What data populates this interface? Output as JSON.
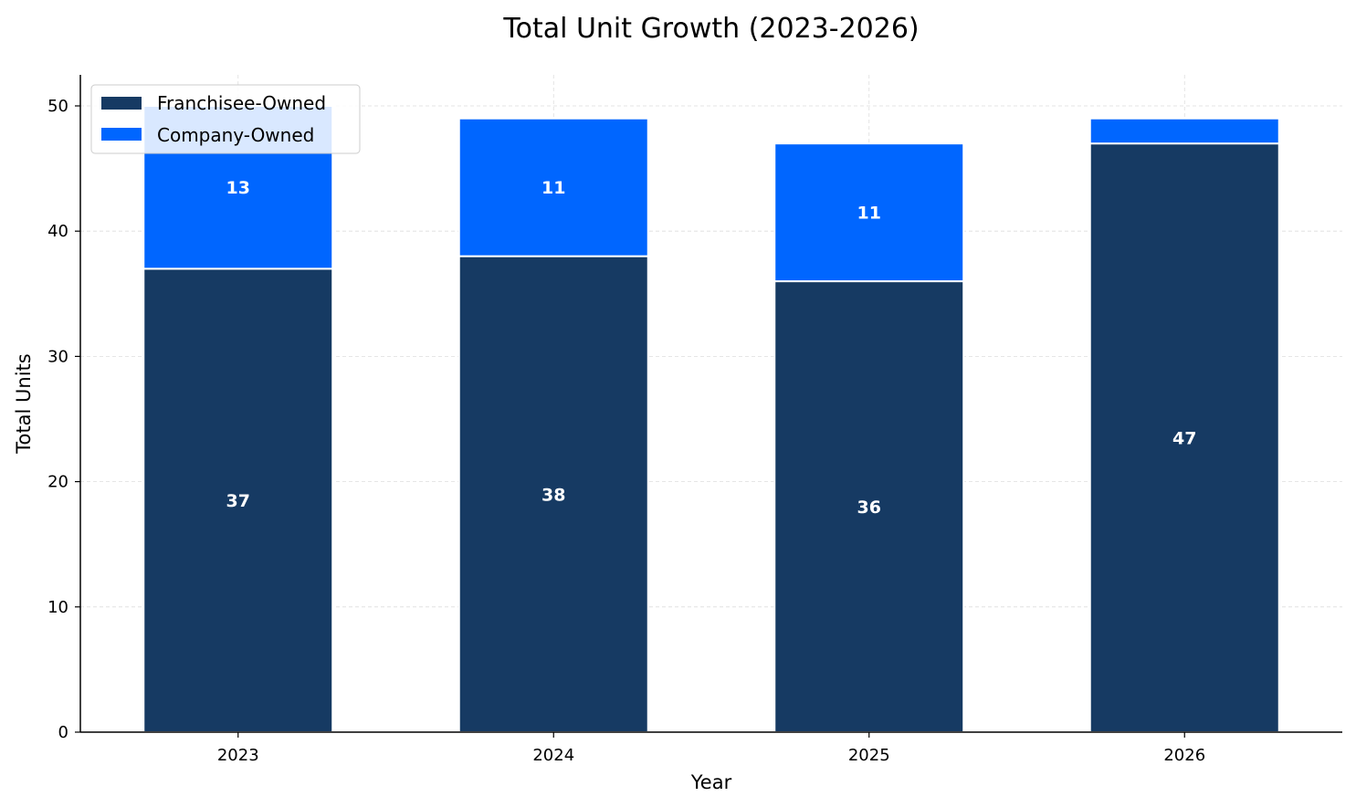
{
  "chart_data": {
    "type": "bar",
    "stacked": true,
    "title": "Total Unit Growth (2023-2026)",
    "xlabel": "Year",
    "ylabel": "Total Units",
    "categories": [
      "2023",
      "2024",
      "2025",
      "2026"
    ],
    "series": [
      {
        "name": "Franchisee-Owned",
        "values": [
          37,
          38,
          36,
          47
        ],
        "color": "#163A63"
      },
      {
        "name": "Company-Owned",
        "values": [
          13,
          11,
          11,
          2
        ],
        "color": "#0066FF"
      }
    ],
    "data_labels": {
      "Franchisee-Owned": [
        "37",
        "38",
        "36",
        "47"
      ],
      "Company-Owned": [
        "13",
        "11",
        "11",
        ""
      ]
    },
    "ylim": [
      0,
      52.5
    ],
    "yticks": [
      "0",
      "10",
      "20",
      "30",
      "40",
      "50"
    ],
    "grid": true,
    "legend_position": "top-left"
  }
}
